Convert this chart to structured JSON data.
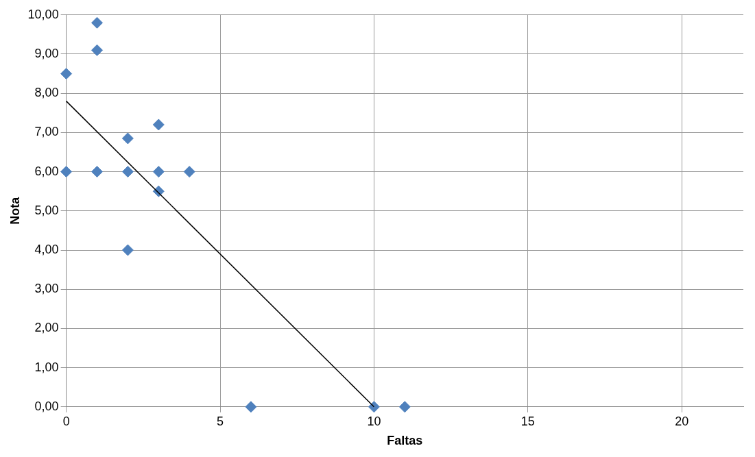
{
  "chart_data": {
    "type": "scatter",
    "xlabel": "Faltas",
    "ylabel": "Nota",
    "xlim": [
      0,
      22
    ],
    "xticks": [
      0,
      5,
      10,
      15,
      20
    ],
    "ylim": [
      0,
      10
    ],
    "yticks": [
      {
        "value": 0,
        "label": "0,00"
      },
      {
        "value": 1,
        "label": "1,00"
      },
      {
        "value": 2,
        "label": "2,00"
      },
      {
        "value": 3,
        "label": "3,00"
      },
      {
        "value": 4,
        "label": "4,00"
      },
      {
        "value": 5,
        "label": "5,00"
      },
      {
        "value": 6,
        "label": "6,00"
      },
      {
        "value": 7,
        "label": "7,00"
      },
      {
        "value": 8,
        "label": "8,00"
      },
      {
        "value": 9,
        "label": "9,00"
      },
      {
        "value": 10,
        "label": "10,00"
      }
    ],
    "grid": true,
    "legend": false,
    "series": [
      {
        "type": "scatter",
        "color": "#4f81bd",
        "marker": "diamond",
        "x": [
          0,
          1,
          1,
          0,
          1,
          2,
          3,
          4,
          2,
          3,
          3,
          2,
          6,
          10,
          11
        ],
        "values": [
          8.5,
          9.8,
          9.1,
          6,
          6,
          6,
          6,
          6,
          6.85,
          7.2,
          5.5,
          4,
          0,
          0,
          0
        ]
      },
      {
        "type": "line",
        "color": "#000000",
        "marker": "none",
        "line_style": "solid",
        "x": [
          0,
          10
        ],
        "values": [
          7.8,
          0
        ]
      }
    ]
  }
}
